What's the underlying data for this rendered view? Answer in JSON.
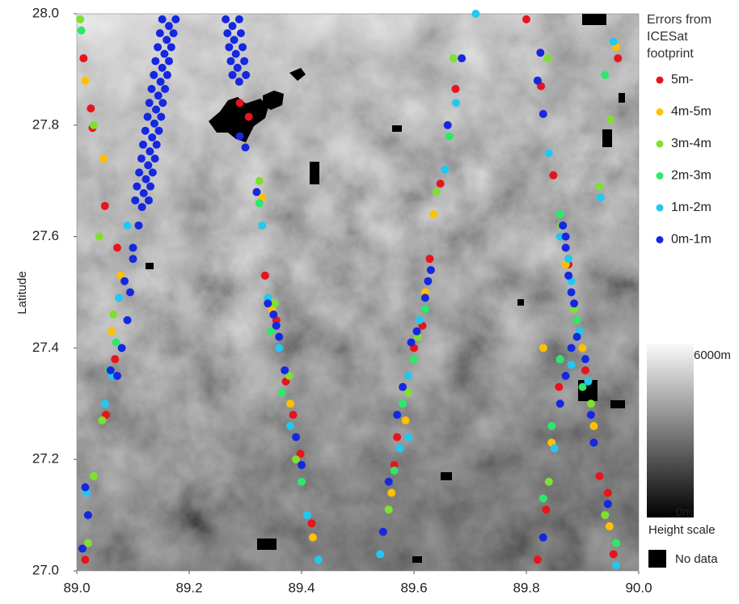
{
  "chart_data": {
    "type": "scatter",
    "ylabel": "Latitude",
    "xlim": [
      89.0,
      90.0
    ],
    "ylim": [
      27.0,
      28.0
    ],
    "xticks": [
      {
        "value": 89.0,
        "label": "89.0"
      },
      89.2,
      89.4,
      89.6,
      89.8,
      {
        "value": 90.0,
        "label": "90.0"
      }
    ],
    "yticks": [
      {
        "value": 27.0,
        "label": "27.0"
      },
      27.2,
      27.4,
      27.6,
      27.8,
      {
        "value": 28.0,
        "label": "28.0"
      }
    ],
    "grid": false,
    "legend_title": "Errors from ICESat footprint",
    "legend_position": "right",
    "colorbar": {
      "max_label": "6000m",
      "min_label": "0m",
      "title": "Height scale"
    },
    "nodata_label": "No data",
    "series": [
      {
        "name": "5m-",
        "color": "#e8141c",
        "x": [
          89.012,
          89.025,
          89.028,
          89.05,
          89.072,
          89.068,
          89.052,
          89.015,
          89.335,
          89.355,
          89.372,
          89.385,
          89.398,
          89.418,
          89.306,
          89.29,
          89.674,
          89.647,
          89.628,
          89.615,
          89.6,
          89.57,
          89.565,
          89.8,
          89.826,
          89.848,
          89.875,
          89.905,
          89.93,
          89.945,
          89.955,
          89.82,
          89.835,
          89.858,
          89.963
        ],
        "values": [
          27.92,
          27.83,
          27.795,
          27.655,
          27.58,
          27.38,
          27.28,
          27.02,
          27.53,
          27.45,
          27.34,
          27.28,
          27.21,
          27.085,
          27.815,
          27.84,
          27.865,
          27.695,
          27.56,
          27.44,
          27.4,
          27.24,
          27.19,
          27.99,
          27.87,
          27.71,
          27.55,
          27.36,
          27.17,
          27.14,
          27.03,
          27.02,
          27.11,
          27.33,
          27.92
        ]
      },
      {
        "name": "4m-5m",
        "color": "#ffc000",
        "x": [
          89.015,
          89.048,
          89.078,
          89.062,
          89.33,
          89.347,
          89.38,
          89.42,
          89.635,
          89.62,
          89.585,
          89.56,
          89.87,
          89.9,
          89.92,
          89.948,
          89.96,
          89.83,
          89.845
        ],
        "values": [
          27.88,
          27.74,
          27.53,
          27.43,
          27.67,
          27.47,
          27.3,
          27.06,
          27.64,
          27.5,
          27.27,
          27.14,
          27.55,
          27.4,
          27.26,
          27.08,
          27.94,
          27.4,
          27.23
        ]
      },
      {
        "name": "3m-4m",
        "color": "#7fe030",
        "x": [
          89.03,
          89.006,
          89.04,
          89.065,
          89.045,
          89.02,
          89.03,
          89.325,
          89.352,
          89.378,
          89.39,
          89.67,
          89.64,
          89.607,
          89.59,
          89.555,
          89.838,
          89.862,
          89.885,
          89.915,
          89.94,
          89.95,
          89.93,
          89.84
        ],
        "values": [
          27.8,
          27.99,
          27.6,
          27.46,
          27.27,
          27.05,
          27.17,
          27.7,
          27.48,
          27.35,
          27.2,
          27.92,
          27.68,
          27.42,
          27.32,
          27.11,
          27.92,
          27.62,
          27.47,
          27.3,
          27.1,
          27.81,
          27.69,
          27.16
        ]
      },
      {
        "name": "2m-3m",
        "color": "#2ee86a",
        "x": [
          89.008,
          89.07,
          89.058,
          89.345,
          89.365,
          89.4,
          89.62,
          89.6,
          89.58,
          89.565,
          89.663,
          89.86,
          89.89,
          89.9,
          89.86,
          89.845,
          89.83,
          89.94,
          89.96,
          89.325
        ],
        "values": [
          27.97,
          27.41,
          27.36,
          27.43,
          27.32,
          27.16,
          27.47,
          27.38,
          27.3,
          27.18,
          27.78,
          27.64,
          27.45,
          27.33,
          27.38,
          27.26,
          27.13,
          27.89,
          27.05,
          27.66
        ]
      },
      {
        "name": "1m-2m",
        "color": "#22c8f0",
        "x": [
          89.05,
          89.063,
          89.075,
          89.09,
          89.017,
          89.33,
          89.34,
          89.36,
          89.38,
          89.41,
          89.43,
          89.675,
          89.655,
          89.61,
          89.59,
          89.575,
          89.54,
          89.71,
          89.84,
          89.86,
          89.875,
          89.88,
          89.895,
          89.91,
          89.88,
          89.85,
          89.932,
          89.955,
          89.96,
          89.59
        ],
        "values": [
          27.3,
          27.35,
          27.49,
          27.62,
          27.14,
          27.62,
          27.49,
          27.4,
          27.26,
          27.1,
          27.02,
          27.84,
          27.72,
          27.45,
          27.35,
          27.22,
          27.03,
          28.0,
          27.75,
          27.6,
          27.56,
          27.52,
          27.43,
          27.34,
          27.37,
          27.22,
          27.67,
          27.95,
          27.01,
          27.24
        ]
      },
      {
        "name": "0m-1m",
        "color": "#1428e0",
        "x": [
          89.152,
          89.164,
          89.176,
          89.148,
          89.16,
          89.172,
          89.144,
          89.156,
          89.168,
          89.14,
          89.152,
          89.164,
          89.137,
          89.149,
          89.161,
          89.133,
          89.145,
          89.157,
          89.129,
          89.141,
          89.153,
          89.126,
          89.138,
          89.15,
          89.122,
          89.134,
          89.146,
          89.118,
          89.13,
          89.142,
          89.115,
          89.127,
          89.139,
          89.111,
          89.123,
          89.135,
          89.107,
          89.119,
          89.131,
          89.104,
          89.116,
          89.128,
          89.265,
          89.277,
          89.289,
          89.268,
          89.28,
          89.292,
          89.271,
          89.283,
          89.295,
          89.274,
          89.286,
          89.298,
          89.277,
          89.289,
          89.301,
          89.095,
          89.09,
          89.08,
          89.072,
          89.1,
          89.11,
          89.085,
          89.06,
          89.02,
          89.01,
          89.015,
          89.1,
          89.29,
          89.3,
          89.32,
          89.34,
          89.35,
          89.355,
          89.36,
          89.37,
          89.39,
          89.4,
          89.625,
          89.63,
          89.62,
          89.605,
          89.595,
          89.58,
          89.57,
          89.555,
          89.545,
          89.685,
          89.66,
          89.87,
          89.875,
          89.88,
          89.885,
          89.87,
          89.865,
          89.89,
          89.905,
          89.88,
          89.87,
          89.86,
          89.915,
          89.92,
          89.83,
          89.945,
          89.82,
          89.83,
          89.825
        ],
        "values": [
          27.99,
          27.978,
          27.99,
          27.965,
          27.953,
          27.965,
          27.94,
          27.928,
          27.94,
          27.915,
          27.903,
          27.915,
          27.89,
          27.878,
          27.89,
          27.865,
          27.853,
          27.865,
          27.84,
          27.828,
          27.84,
          27.815,
          27.803,
          27.815,
          27.79,
          27.778,
          27.79,
          27.765,
          27.753,
          27.765,
          27.74,
          27.728,
          27.74,
          27.715,
          27.703,
          27.715,
          27.69,
          27.678,
          27.69,
          27.665,
          27.653,
          27.665,
          27.99,
          27.978,
          27.99,
          27.965,
          27.953,
          27.965,
          27.94,
          27.928,
          27.94,
          27.915,
          27.903,
          27.915,
          27.89,
          27.878,
          27.89,
          27.5,
          27.45,
          27.4,
          27.35,
          27.56,
          27.62,
          27.52,
          27.36,
          27.1,
          27.04,
          27.15,
          27.58,
          27.78,
          27.76,
          27.68,
          27.48,
          27.46,
          27.44,
          27.42,
          27.36,
          27.24,
          27.19,
          27.52,
          27.54,
          27.49,
          27.43,
          27.41,
          27.33,
          27.28,
          27.16,
          27.07,
          27.92,
          27.8,
          27.58,
          27.53,
          27.5,
          27.48,
          27.6,
          27.62,
          27.42,
          27.38,
          27.4,
          27.35,
          27.3,
          27.28,
          27.23,
          27.06,
          27.12,
          27.88,
          27.82,
          27.93
        ]
      }
    ]
  }
}
